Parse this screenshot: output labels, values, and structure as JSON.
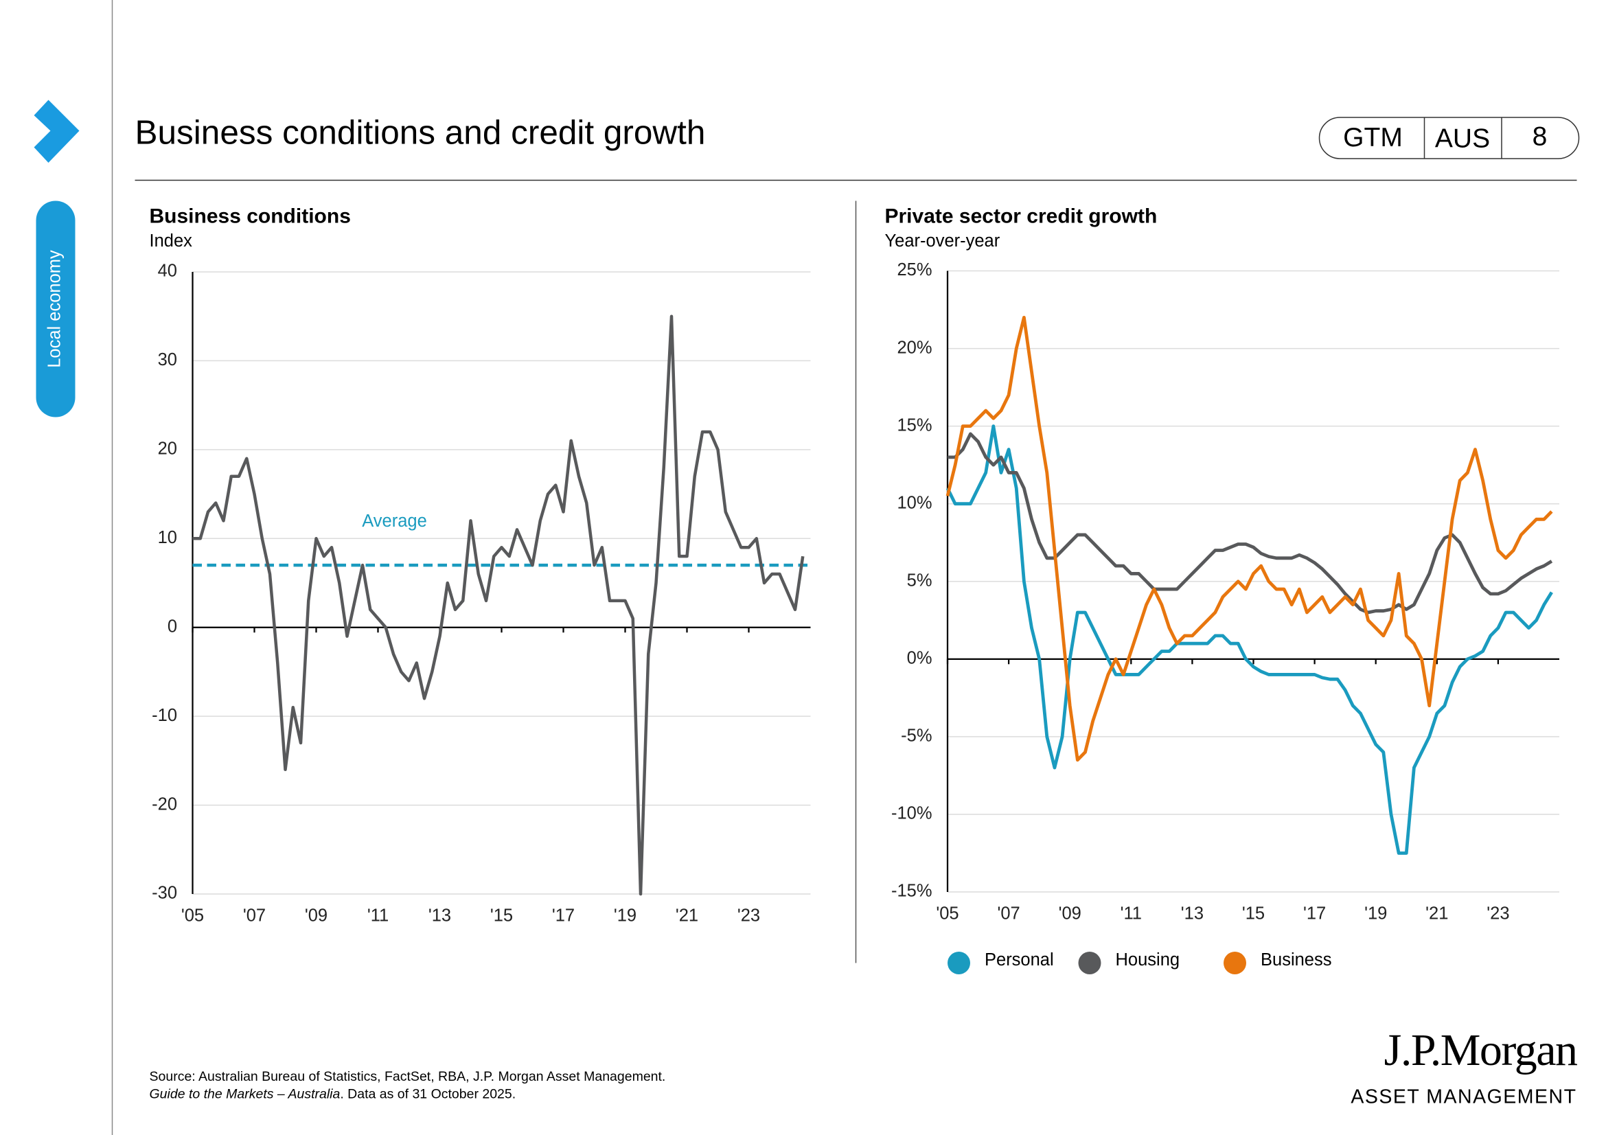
{
  "sidebar": {
    "section": "Local economy"
  },
  "header": {
    "title": "Business conditions and credit growth",
    "badge": [
      "GTM",
      "AUS",
      "8"
    ]
  },
  "chart_data": [
    {
      "type": "line",
      "title": "Business conditions",
      "subtitle": "Index",
      "color": "#58595b",
      "x": [
        2005,
        2005.25,
        2005.5,
        2005.75,
        2006,
        2006.25,
        2006.5,
        2006.75,
        2007,
        2007.25,
        2007.5,
        2007.75,
        2008,
        2008.25,
        2008.5,
        2008.75,
        2009,
        2009.25,
        2009.5,
        2009.75,
        2010,
        2010.25,
        2010.5,
        2010.75,
        2011,
        2011.25,
        2011.5,
        2011.75,
        2012,
        2012.25,
        2012.5,
        2012.75,
        2013,
        2013.25,
        2013.5,
        2013.75,
        2014,
        2014.25,
        2014.5,
        2014.75,
        2015,
        2015.25,
        2015.5,
        2015.75,
        2016,
        2016.25,
        2016.5,
        2016.75,
        2017,
        2017.25,
        2017.5,
        2017.75,
        2018,
        2018.25,
        2018.5,
        2018.75,
        2019,
        2019.25,
        2019.5,
        2019.75,
        2020,
        2020.25,
        2020.5,
        2020.75,
        2021,
        2021.25,
        2021.5,
        2021.75,
        2022,
        2022.25,
        2022.5,
        2022.75,
        2023,
        2023.25,
        2023.5,
        2023.75,
        2024,
        2024.25,
        2024.5,
        2024.75
      ],
      "values": [
        10,
        10,
        13,
        14,
        12,
        17,
        17,
        19,
        15,
        10,
        6,
        -4,
        -16,
        -9,
        -13,
        3,
        10,
        8,
        9,
        5,
        -1,
        3,
        7,
        2,
        1,
        0,
        -3,
        -5,
        -6,
        -4,
        -8,
        -5,
        -1,
        5,
        2,
        3,
        12,
        6,
        3,
        8,
        9,
        8,
        11,
        9,
        7,
        12,
        15,
        16,
        13,
        21,
        17,
        14,
        7,
        9,
        3,
        3,
        3,
        1,
        -30,
        -3,
        5,
        18,
        35,
        8,
        8,
        17,
        22,
        22,
        20,
        13,
        11,
        9,
        9,
        10,
        5,
        6,
        6,
        4,
        2,
        8
      ],
      "average": {
        "label": "Average",
        "value": 7,
        "color": "#1a9bbf"
      },
      "xlim": [
        2005,
        2025
      ],
      "xticks": [
        {
          "value": 2005,
          "label": "'05"
        },
        {
          "value": 2007,
          "label": "'07"
        },
        {
          "value": 2009,
          "label": "'09"
        },
        {
          "value": 2011,
          "label": "'11"
        },
        {
          "value": 2013,
          "label": "'13"
        },
        {
          "value": 2015,
          "label": "'15"
        },
        {
          "value": 2017,
          "label": "'17"
        },
        {
          "value": 2019,
          "label": "'19"
        },
        {
          "value": 2021,
          "label": "'21"
        },
        {
          "value": 2023,
          "label": "'23"
        }
      ],
      "ylim": [
        -30,
        40
      ],
      "yticks": [
        -30,
        -20,
        -10,
        0,
        10,
        20,
        30,
        40
      ],
      "grid": true
    },
    {
      "type": "line",
      "title": "Private sector credit growth",
      "subtitle": "Year-over-year",
      "x": [
        2005,
        2005.25,
        2005.5,
        2005.75,
        2006,
        2006.25,
        2006.5,
        2006.75,
        2007,
        2007.25,
        2007.5,
        2007.75,
        2008,
        2008.25,
        2008.5,
        2008.75,
        2009,
        2009.25,
        2009.5,
        2009.75,
        2010,
        2010.25,
        2010.5,
        2010.75,
        2011,
        2011.25,
        2011.5,
        2011.75,
        2012,
        2012.25,
        2012.5,
        2012.75,
        2013,
        2013.25,
        2013.5,
        2013.75,
        2014,
        2014.25,
        2014.5,
        2014.75,
        2015,
        2015.25,
        2015.5,
        2015.75,
        2016,
        2016.25,
        2016.5,
        2016.75,
        2017,
        2017.25,
        2017.5,
        2017.75,
        2018,
        2018.25,
        2018.5,
        2018.75,
        2019,
        2019.25,
        2019.5,
        2019.75,
        2020,
        2020.25,
        2020.5,
        2020.75,
        2021,
        2021.25,
        2021.5,
        2021.75,
        2022,
        2022.25,
        2022.5,
        2022.75,
        2023,
        2023.25,
        2023.5,
        2023.75,
        2024,
        2024.25,
        2024.5,
        2024.75
      ],
      "series": [
        {
          "name": "Personal",
          "color": "#1a9bbf",
          "values": [
            11,
            10,
            10,
            10,
            11,
            12,
            15,
            12,
            13.5,
            11,
            5,
            2,
            0,
            -5,
            -7,
            -5,
            0,
            3,
            3,
            2,
            1,
            0,
            -1,
            -1,
            -1,
            -1,
            -0.5,
            0,
            0.5,
            0.5,
            1,
            1,
            1,
            1,
            1,
            1.5,
            1.5,
            1,
            1,
            0,
            -0.5,
            -0.8,
            -1,
            -1,
            -1,
            -1,
            -1,
            -1,
            -1,
            -1.2,
            -1.3,
            -1.3,
            -2,
            -3,
            -3.5,
            -4.5,
            -5.5,
            -6,
            -10,
            -12.5,
            -12.5,
            -7,
            -6,
            -5,
            -3.5,
            -3,
            -1.5,
            -0.5,
            0,
            0.2,
            0.5,
            1.5,
            2,
            3,
            3,
            2.5,
            2,
            2.5,
            3.5,
            4.3
          ]
        },
        {
          "name": "Housing",
          "color": "#58595b",
          "values": [
            13,
            13,
            13.5,
            14.5,
            14,
            13,
            12.5,
            13,
            12,
            12,
            11,
            9,
            7.5,
            6.5,
            6.5,
            7,
            7.5,
            8,
            8,
            7.5,
            7,
            6.5,
            6,
            6,
            5.5,
            5.5,
            5,
            4.5,
            4.5,
            4.5,
            4.5,
            5,
            5.5,
            6,
            6.5,
            7,
            7,
            7.2,
            7.4,
            7.4,
            7.2,
            6.8,
            6.6,
            6.5,
            6.5,
            6.5,
            6.7,
            6.5,
            6.2,
            5.8,
            5.3,
            4.8,
            4.2,
            3.7,
            3.2,
            3,
            3.1,
            3.1,
            3.2,
            3.5,
            3.2,
            3.5,
            4.5,
            5.5,
            7,
            7.8,
            8,
            7.5,
            6.5,
            5.5,
            4.6,
            4.2,
            4.2,
            4.4,
            4.8,
            5.2,
            5.5,
            5.8,
            6,
            6.3
          ]
        },
        {
          "name": "Business",
          "color": "#e8760e",
          "values": [
            10.5,
            12.5,
            15,
            15,
            15.5,
            16,
            15.5,
            16,
            17,
            20,
            22,
            18.5,
            15,
            12,
            7,
            2,
            -3,
            -6.5,
            -6,
            -4,
            -2.5,
            -1,
            0,
            -1,
            0.5,
            2,
            3.5,
            4.5,
            3.5,
            2,
            1,
            1.5,
            1.5,
            2,
            2.5,
            3,
            4,
            4.5,
            5,
            4.5,
            5.5,
            6,
            5,
            4.5,
            4.5,
            3.5,
            4.5,
            3,
            3.5,
            4,
            3,
            3.5,
            4,
            3.5,
            4.5,
            2.5,
            2,
            1.5,
            2.5,
            5.5,
            1.5,
            1,
            0,
            -3,
            1,
            5,
            9,
            11.5,
            12,
            13.5,
            11.5,
            9,
            7,
            6.5,
            7,
            8,
            8.5,
            9,
            9,
            9.5
          ]
        }
      ],
      "xlim": [
        2005,
        2025
      ],
      "xticks": [
        {
          "value": 2005,
          "label": "'05"
        },
        {
          "value": 2007,
          "label": "'07"
        },
        {
          "value": 2009,
          "label": "'09"
        },
        {
          "value": 2011,
          "label": "'11"
        },
        {
          "value": 2013,
          "label": "'13"
        },
        {
          "value": 2015,
          "label": "'15"
        },
        {
          "value": 2017,
          "label": "'17"
        },
        {
          "value": 2019,
          "label": "'19"
        },
        {
          "value": 2021,
          "label": "'21"
        },
        {
          "value": 2023,
          "label": "'23"
        }
      ],
      "ylim": [
        -15,
        25
      ],
      "yticks": [
        {
          "value": -15,
          "label": "-15%"
        },
        {
          "value": -10,
          "label": "-10%"
        },
        {
          "value": -5,
          "label": "-5%"
        },
        {
          "value": 0,
          "label": "0%"
        },
        {
          "value": 5,
          "label": "5%"
        },
        {
          "value": 10,
          "label": "10%"
        },
        {
          "value": 15,
          "label": "15%"
        },
        {
          "value": 20,
          "label": "20%"
        },
        {
          "value": 25,
          "label": "25%"
        }
      ],
      "grid": true,
      "legend": "bottom"
    }
  ],
  "footnotes": {
    "source": "Source: Australian Bureau of Statistics, FactSet, RBA, J.P. Morgan Asset Management.",
    "guide_title": "Guide to the Markets – Australia",
    "data_note": ". Data as of 31 October 2025."
  },
  "logo": {
    "name": "J.P.Morgan",
    "division": "ASSET MANAGEMENT"
  }
}
